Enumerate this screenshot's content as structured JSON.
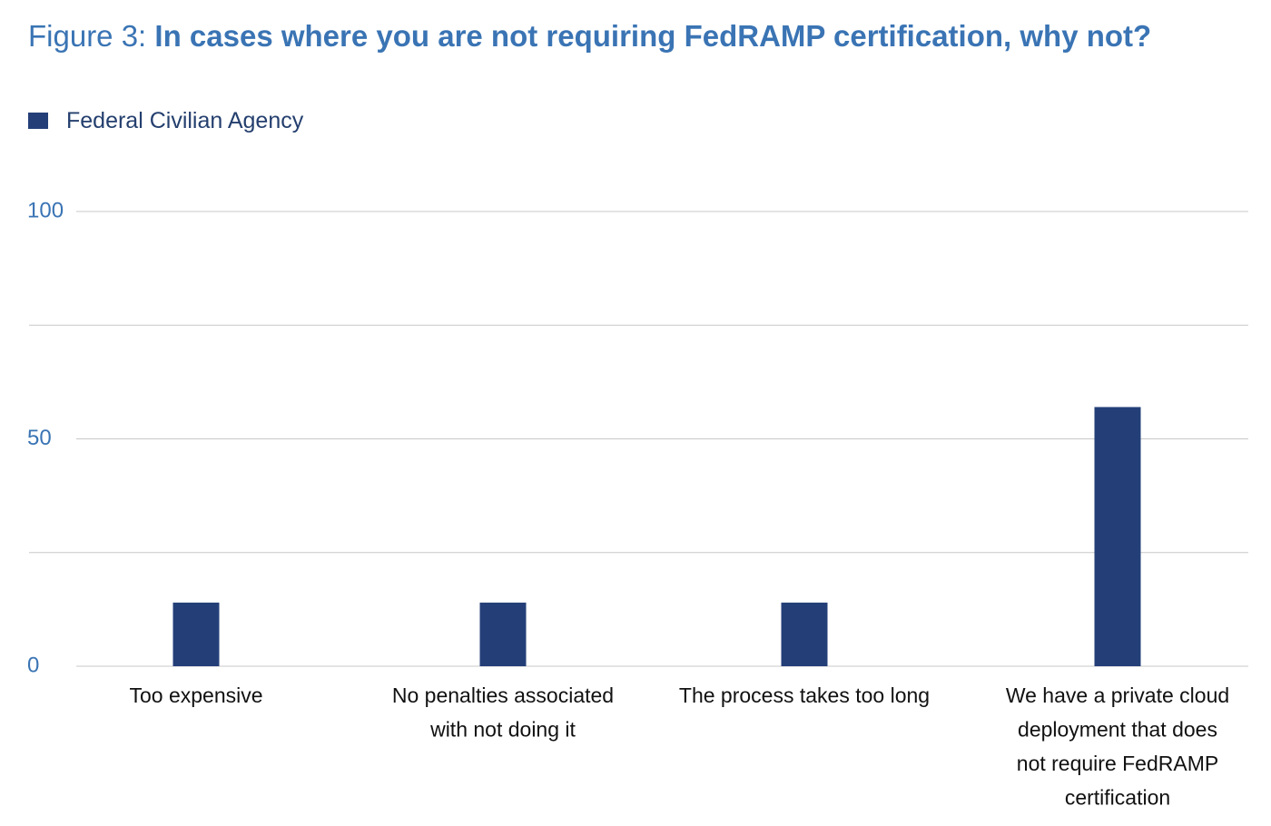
{
  "figure": {
    "prefix": "Figure 3: ",
    "title": "In cases where you are not requiring FedRAMP certification, why not?"
  },
  "colors": {
    "title": "#3a74b4",
    "bar": "#243f78",
    "grid": "#c8c8c8",
    "tick": "#3a74b4",
    "category": "#111111",
    "legend_text": "#243f6e"
  },
  "chart_data": {
    "type": "bar",
    "categories": [
      [
        "Too expensive"
      ],
      [
        "No penalties associated",
        "with not doing it"
      ],
      [
        "The process takes too long"
      ],
      [
        "We have a private cloud",
        "deployment that does",
        "not require FedRAMP",
        "certification"
      ]
    ],
    "series": [
      {
        "name": "Federal Civilian Agency",
        "values": [
          14,
          14,
          14,
          57
        ]
      }
    ],
    "ylim": [
      0,
      100
    ],
    "ytick_values": [
      0,
      25,
      50,
      75,
      100
    ],
    "ytick_labels": [
      "0",
      "",
      "50",
      "",
      "100"
    ],
    "grid": true,
    "legend_position": "top-left"
  }
}
